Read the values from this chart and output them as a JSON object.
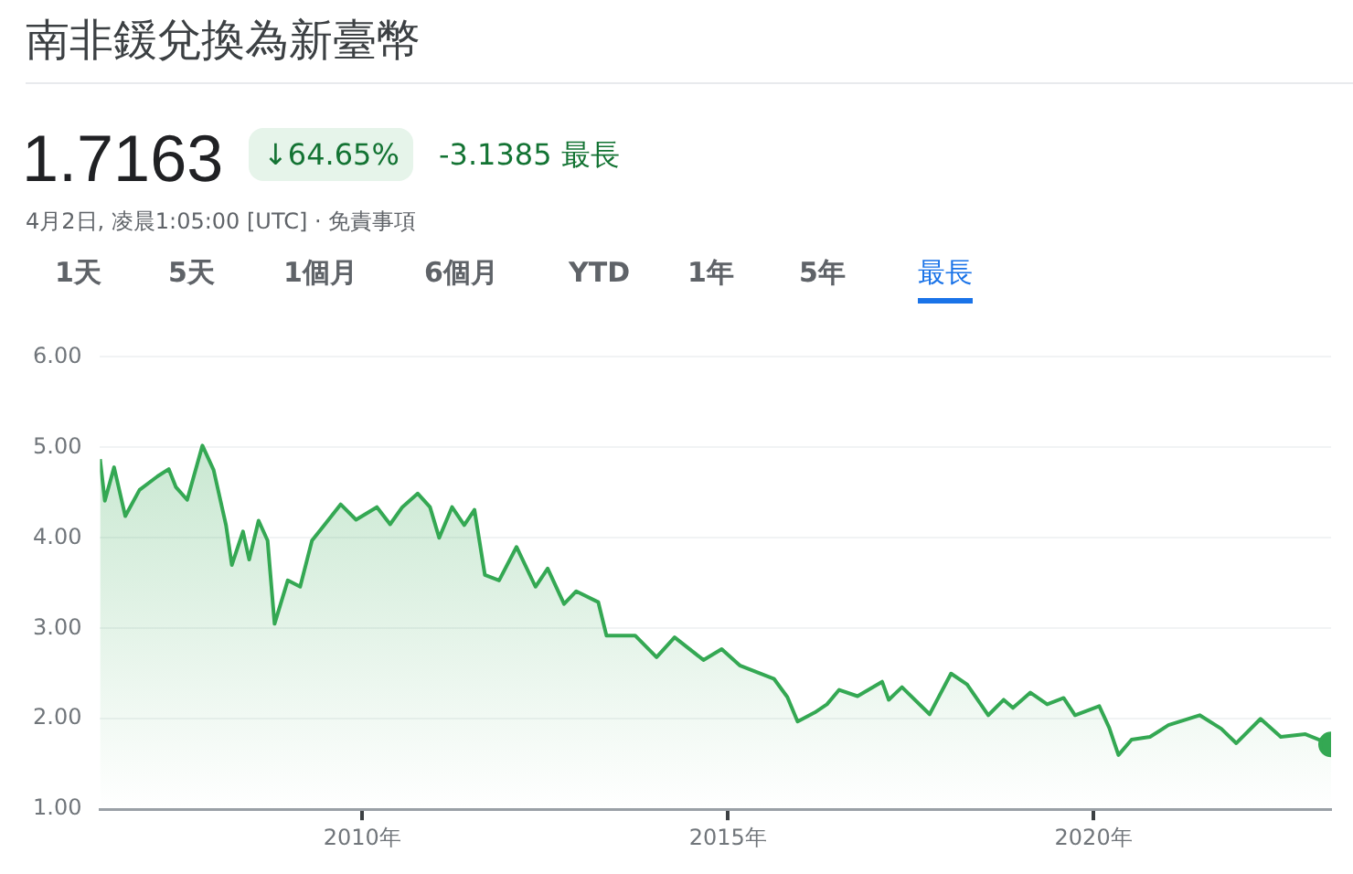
{
  "chart_data": {
    "type": "area",
    "title": "南非鍰兌換為新臺幣",
    "annotations": [
      "1.7163",
      "↓64.65%",
      "-3.1385 最長",
      "4月2日, 凌晨1:05:00 [UTC] · 免責事項",
      "1天",
      "5天",
      "1個月",
      "6個月",
      "YTD",
      "1年",
      "5年",
      "最長"
    ],
    "x": [
      "2006-06-01",
      "2006-06-25",
      "2006-08-10",
      "2006-10-05",
      "2006-12-15",
      "2007-03-15",
      "2007-05-10",
      "2007-06-15",
      "2007-08-10",
      "2007-10-25",
      "2007-12-20",
      "2008-02-20",
      "2008-03-20",
      "2008-05-15",
      "2008-06-15",
      "2008-08-01",
      "2008-09-15",
      "2008-10-20",
      "2008-12-25",
      "2009-02-25",
      "2009-04-25",
      "2009-06-25",
      "2009-09-15",
      "2009-12-01",
      "2010-03-15",
      "2010-05-20",
      "2010-07-20",
      "2010-10-05",
      "2010-12-05",
      "2011-01-20",
      "2011-03-25",
      "2011-05-25",
      "2011-07-15",
      "2011-09-05",
      "2011-11-15",
      "2012-02-10",
      "2012-05-15",
      "2012-07-15",
      "2012-10-05",
      "2012-12-05",
      "2013-03-25",
      "2013-05-05",
      "2013-09-25",
      "2014-01-10",
      "2014-04-10",
      "2014-09-01",
      "2014-12-01",
      "2015-03-01",
      "2015-08-20",
      "2015-10-25",
      "2015-12-15",
      "2016-03-10",
      "2016-05-10",
      "2016-07-10",
      "2016-10-10",
      "2017-02-10",
      "2017-03-15",
      "2017-05-20",
      "2017-10-05",
      "2018-01-20",
      "2018-04-10",
      "2018-07-25",
      "2018-10-10",
      "2018-11-25",
      "2019-02-20",
      "2019-05-15",
      "2019-08-05",
      "2019-10-01",
      "2020-01-30",
      "2020-03-20",
      "2020-05-05",
      "2020-07-10",
      "2020-10-10",
      "2021-01-10",
      "2021-06-15",
      "2021-10-01",
      "2021-12-15",
      "2022-04-15",
      "2022-07-25",
      "2022-11-25",
      "2023-04-02"
    ],
    "series": [
      {
        "color": "#34a853",
        "values": [
          4.87,
          4.41,
          4.78,
          4.24,
          4.53,
          4.68,
          4.76,
          4.56,
          4.42,
          5.02,
          4.75,
          4.14,
          3.7,
          4.07,
          3.76,
          4.19,
          3.97,
          3.05,
          3.53,
          3.46,
          3.97,
          4.14,
          4.37,
          4.2,
          4.34,
          4.15,
          4.34,
          4.49,
          4.34,
          4.0,
          4.34,
          4.14,
          4.31,
          3.59,
          3.53,
          3.9,
          3.46,
          3.66,
          3.27,
          3.41,
          3.29,
          2.92,
          2.92,
          2.68,
          2.9,
          2.65,
          2.77,
          2.59,
          2.44,
          2.24,
          1.97,
          2.07,
          2.16,
          2.32,
          2.25,
          2.41,
          2.21,
          2.35,
          2.05,
          2.5,
          2.38,
          2.04,
          2.21,
          2.12,
          2.29,
          2.16,
          2.23,
          2.04,
          2.14,
          1.9,
          1.6,
          1.77,
          1.8,
          1.93,
          2.04,
          1.89,
          1.73,
          2.0,
          1.8,
          1.83,
          1.7163
        ]
      }
    ],
    "xlim": [
      "2006-06-01",
      "2023-04-02"
    ],
    "xticks": [
      {
        "value": "2010",
        "label": "2010年"
      },
      {
        "value": "2015",
        "label": "2015年"
      },
      {
        "value": "2020",
        "label": "2020年"
      }
    ],
    "ylim": [
      1,
      6
    ],
    "yticks": [
      {
        "value": 1,
        "label": "1.00"
      },
      {
        "value": 2,
        "label": "2.00"
      },
      {
        "value": 3,
        "label": "3.00"
      },
      {
        "value": 4,
        "label": "4.00"
      },
      {
        "value": 5,
        "label": "5.00"
      },
      {
        "value": 6,
        "label": "6.00"
      }
    ],
    "grid": "y",
    "legend": false,
    "marker": "none",
    "line_style": "solid"
  }
}
